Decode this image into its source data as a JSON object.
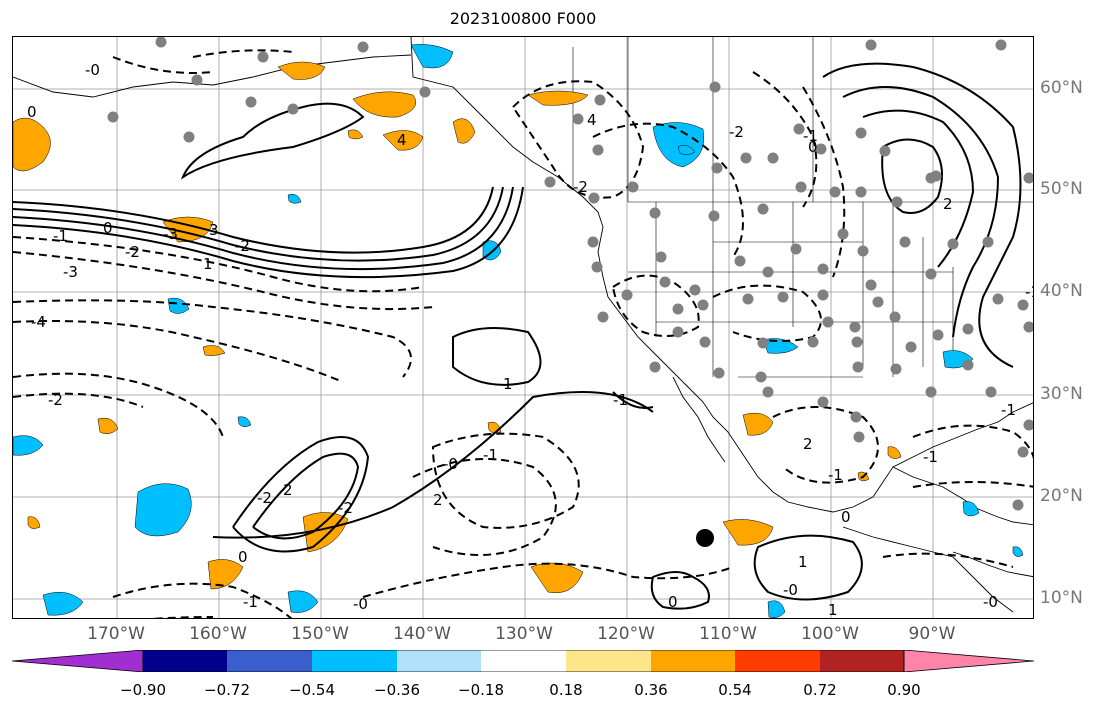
{
  "title": "2023100800 F000",
  "lon_labels": [
    "170°W",
    "160°W",
    "150°W",
    "140°W",
    "130°W",
    "120°W",
    "110°W",
    "100°W",
    "90°W"
  ],
  "lat_labels": [
    "60°N",
    "50°N",
    "40°N",
    "30°N",
    "20°N",
    "10°N"
  ],
  "contour_labels": [
    "-0",
    "0",
    "0",
    "-3",
    "-2",
    "1",
    "-3",
    "3",
    "-2",
    "-1",
    "-4",
    "-2",
    "4",
    "4",
    "-1",
    "2",
    "-2",
    "0",
    "-1",
    "-2",
    "-0",
    "0",
    "-1",
    "1",
    "2",
    "-1",
    "-0",
    "-2",
    "2",
    "-2",
    "-1",
    "-0",
    "0",
    "1",
    "2",
    "-1",
    "0",
    "-1",
    "-1",
    "1",
    "-0"
  ],
  "colorbar": {
    "ticks": [
      "−0.90",
      "−0.72",
      "−0.54",
      "−0.36",
      "−0.18",
      "0.18",
      "0.36",
      "0.54",
      "0.72",
      "0.90"
    ],
    "colors": [
      "#a02ed0",
      "#00008b",
      "#3a5fcd",
      "#00bfff",
      "#b0e0fa",
      "#ffffff",
      "#fde68a",
      "#ffa500",
      "#ff3b00",
      "#b22222",
      "#ff85a8"
    ]
  },
  "colors": {
    "positive_fill": "#ffa500",
    "negative_fill": "#00bfff",
    "station_marker": "#808080",
    "contour": "#000000"
  }
}
